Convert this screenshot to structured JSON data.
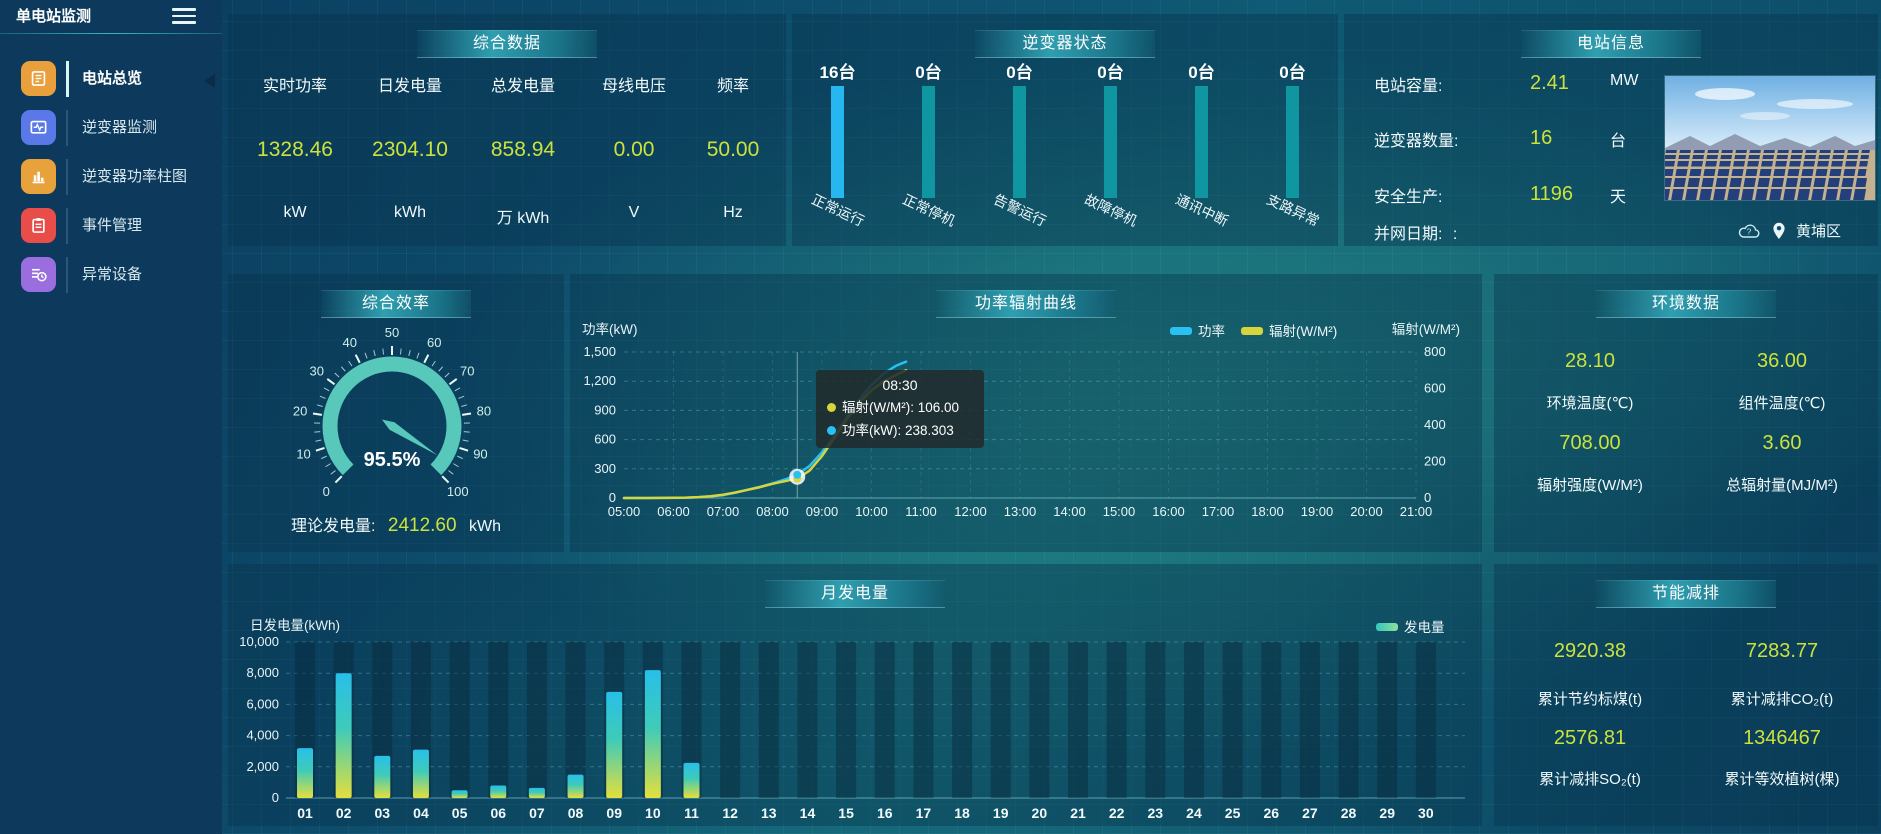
{
  "app": {
    "title": "单电站监测"
  },
  "colors": {
    "accent_yellow": "#cbe23c",
    "power_line": "#29c1f4",
    "radiation_line": "#d6d53c",
    "gauge": "#57c8ba",
    "inverter_bar_active": "#27b7f0",
    "inverter_bar_idle": "#0f96a0"
  },
  "sidebar": {
    "items": [
      {
        "label": "电站总览",
        "icon": "overview-icon",
        "color": "#e89f3c",
        "active": true
      },
      {
        "label": "逆变器监测",
        "icon": "inverter-monitor-icon",
        "color": "#5b78e8",
        "active": false
      },
      {
        "label": "逆变器功率柱图",
        "icon": "power-bars-icon",
        "color": "#e8a23c",
        "active": false
      },
      {
        "label": "事件管理",
        "icon": "event-icon",
        "color": "#e84d4a",
        "active": false
      },
      {
        "label": "异常设备",
        "icon": "abnormal-icon",
        "color": "#9a6ede",
        "active": false
      }
    ]
  },
  "summary": {
    "title": "综合数据",
    "metrics": [
      {
        "label": "实时功率",
        "value": "1328.46",
        "unit": "kW"
      },
      {
        "label": "日发电量",
        "value": "2304.10",
        "unit": "kWh"
      },
      {
        "label": "总发电量",
        "value": "858.94",
        "unit": "万 kWh"
      },
      {
        "label": "母线电压",
        "value": "0.00",
        "unit": "V"
      },
      {
        "label": "频率",
        "value": "50.00",
        "unit": "Hz"
      }
    ]
  },
  "station_info": {
    "title": "电站信息",
    "rows": [
      {
        "label": "电站容量:",
        "value": "2.41",
        "unit": "MW"
      },
      {
        "label": "逆变器数量:",
        "value": "16",
        "unit": "台"
      },
      {
        "label": "安全生产:",
        "value": "1196",
        "unit": "天"
      }
    ],
    "date_label": "并网日期:",
    "date_value": ":",
    "location": "黄埔区"
  },
  "efficiency": {
    "title": "综合效率",
    "theory_label": "理论发电量:",
    "theory_value": "2412.60",
    "theory_unit": "kWh"
  },
  "environment": {
    "title": "环境数据",
    "metrics": [
      {
        "value": "28.10",
        "label": "环境温度(℃)"
      },
      {
        "value": "36.00",
        "label": "组件温度(℃)"
      },
      {
        "value": "708.00",
        "label": "辐射强度(W/M²)"
      },
      {
        "value": "3.60",
        "label": "总辐射量(MJ/M²)"
      }
    ]
  },
  "saving": {
    "title": "节能减排",
    "metrics": [
      {
        "value": "2920.38",
        "label": "累计节约标煤(t)"
      },
      {
        "value": "7283.77",
        "label": "累计减排CO₂(t)"
      },
      {
        "value": "2576.81",
        "label": "累计减排SO₂(t)"
      },
      {
        "value": "1346467",
        "label": "累计等效植树(棵)"
      }
    ]
  },
  "chart_data": [
    {
      "id": "inverter_status",
      "type": "bar",
      "title": "逆变器状态",
      "categories": [
        "正常运行",
        "正常停机",
        "告警运行",
        "故障停机",
        "通讯中断",
        "支路异常"
      ],
      "values": [
        16,
        0,
        0,
        0,
        0,
        0
      ],
      "value_labels": [
        "16台",
        "0台",
        "0台",
        "0台",
        "0台",
        "0台"
      ],
      "layout": "equal-height pictorial bars, first bar highlighted blue, labels rotated"
    },
    {
      "id": "efficiency_gauge",
      "type": "gauge",
      "title": "综合效率",
      "value": 95.5,
      "display": "95.5%",
      "min": 0,
      "max": 100,
      "tick_labels": [
        "0",
        "10",
        "20",
        "30",
        "40",
        "50",
        "60",
        "70",
        "80",
        "90",
        "100"
      ]
    },
    {
      "id": "power_radiation",
      "type": "line",
      "title": "功率辐射曲线",
      "legend": [
        "功率",
        "辐射(W/M²)"
      ],
      "xticks": [
        "05:00",
        "06:00",
        "07:00",
        "08:00",
        "09:00",
        "10:00",
        "11:00",
        "12:00",
        "13:00",
        "14:00",
        "15:00",
        "16:00",
        "17:00",
        "18:00",
        "19:00",
        "20:00",
        "21:00"
      ],
      "x_range_hours": [
        5,
        21
      ],
      "left_axis": {
        "label": "功率(kW)",
        "max": 1500,
        "ticks": [
          "0",
          "300",
          "600",
          "900",
          "1,200",
          "1,500"
        ]
      },
      "right_axis": {
        "label": "辐射(W/M²)",
        "max": 800,
        "ticks": [
          "0",
          "200",
          "400",
          "600",
          "800"
        ]
      },
      "series": [
        {
          "name": "功率",
          "axis": "left",
          "color": "#29c1f4",
          "x": [
            5,
            5.5,
            6,
            6.25,
            6.5,
            6.75,
            7,
            7.25,
            7.5,
            7.75,
            8,
            8.25,
            8.5,
            8.75,
            9,
            9.25,
            9.5,
            9.75,
            10,
            10.25,
            10.5,
            10.7
          ],
          "values": [
            0,
            0,
            1,
            3,
            8,
            16,
            30,
            55,
            85,
            115,
            150,
            190,
            238.3,
            330,
            470,
            640,
            830,
            1010,
            1160,
            1280,
            1360,
            1400
          ]
        },
        {
          "name": "辐射(W/M²)",
          "axis": "right",
          "color": "#d6d53c",
          "x": [
            5,
            5.5,
            6,
            6.25,
            6.5,
            6.75,
            7,
            7.25,
            7.5,
            7.75,
            8,
            8.25,
            8.5,
            8.75,
            9,
            9.25,
            9.5,
            9.75,
            10,
            10.25,
            10.5,
            10.7
          ],
          "values": [
            0,
            0,
            1,
            2,
            5,
            10,
            18,
            30,
            45,
            60,
            78,
            92,
            106,
            150,
            230,
            330,
            430,
            520,
            590,
            640,
            675,
            700
          ]
        }
      ],
      "tooltip": {
        "title": "08:30",
        "x_hour": 8.5,
        "rows": [
          {
            "label": "辐射(W/M²)",
            "value": "106.00",
            "color": "#d6d53c"
          },
          {
            "label": "功率(kW)",
            "value": "238.303",
            "color": "#29c1f4"
          }
        ]
      }
    },
    {
      "id": "monthly_energy",
      "type": "bar",
      "title": "月发电量",
      "ylabel": "日发电量(kWh)",
      "legend": "发电量",
      "ymax": 10000,
      "yticks": [
        "0",
        "2,000",
        "4,000",
        "6,000",
        "8,000",
        "10,000"
      ],
      "categories": [
        "01",
        "02",
        "03",
        "04",
        "05",
        "06",
        "07",
        "08",
        "09",
        "10",
        "11",
        "12",
        "13",
        "14",
        "15",
        "16",
        "17",
        "18",
        "19",
        "20",
        "21",
        "22",
        "23",
        "24",
        "25",
        "26",
        "27",
        "28",
        "29",
        "30"
      ],
      "values": [
        3200,
        8000,
        2700,
        3100,
        500,
        800,
        650,
        1500,
        6800,
        8200,
        2250,
        0,
        0,
        0,
        0,
        0,
        0,
        0,
        0,
        0,
        0,
        0,
        0,
        0,
        0,
        0,
        0,
        0,
        0,
        0
      ]
    }
  ]
}
